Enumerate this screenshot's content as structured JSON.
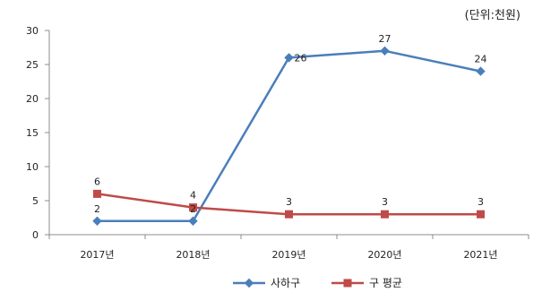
{
  "chart_data": {
    "type": "line",
    "unit_note": "(단위:천원)",
    "categories": [
      "2017년",
      "2018년",
      "2019년",
      "2020년",
      "2021년"
    ],
    "ylim": [
      0,
      30
    ],
    "yticks": [
      0,
      5,
      10,
      15,
      20,
      25,
      30
    ],
    "grid": false,
    "legend_position": "bottom",
    "series": [
      {
        "name": "사하구",
        "values": [
          2,
          2,
          26,
          27,
          24
        ],
        "color": "#4A7EBB",
        "marker": "diamond"
      },
      {
        "name": "구 평균",
        "values": [
          6,
          4,
          3,
          3,
          3
        ],
        "color": "#BE4B48",
        "marker": "square"
      }
    ]
  }
}
